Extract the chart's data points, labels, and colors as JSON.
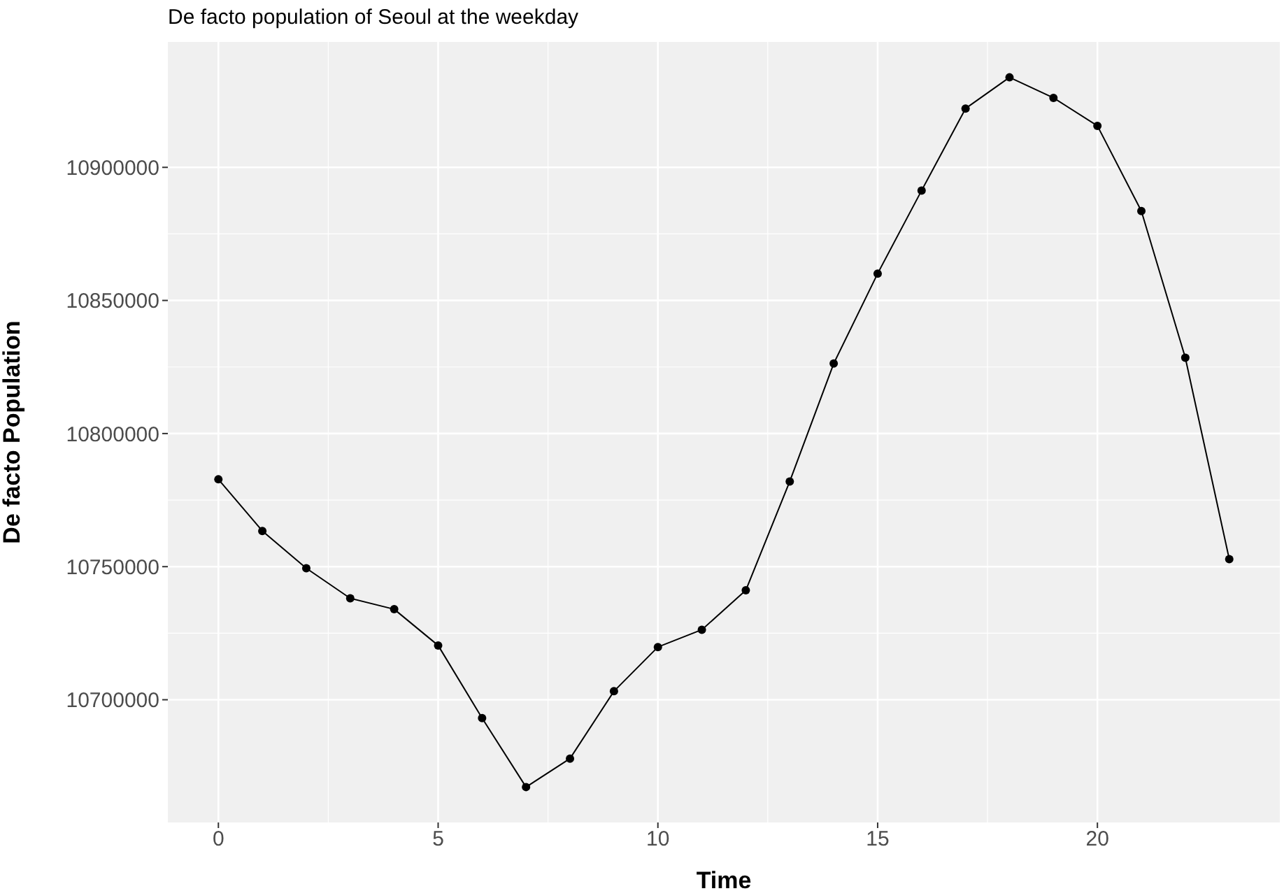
{
  "chart_data": {
    "type": "line",
    "title": "De facto population of Seoul at the weekday",
    "xlabel": "Time",
    "ylabel": "De facto Population",
    "x": [
      0,
      1,
      2,
      3,
      4,
      5,
      6,
      7,
      8,
      9,
      10,
      11,
      12,
      13,
      14,
      15,
      16,
      17,
      18,
      19,
      20,
      21,
      22,
      23
    ],
    "series": [
      {
        "color": "#000000",
        "values": [
          10782800,
          10763400,
          10749400,
          10738100,
          10734000,
          10720400,
          10693100,
          10667200,
          10677900,
          10703200,
          10719800,
          10726300,
          10741100,
          10782000,
          10826300,
          10860100,
          10891300,
          10922100,
          10933800,
          10926100,
          10915600,
          10883600,
          10828500,
          10752800
        ]
      }
    ],
    "xlim": [
      -1.15,
      24.15
    ],
    "xticks": [
      0,
      5,
      10,
      15,
      20
    ],
    "ylim": [
      10653900,
      10947100
    ],
    "yticks": [
      10700000,
      10750000,
      10800000,
      10850000,
      10900000
    ],
    "grid": true,
    "marker": "circle",
    "line_style": "solid",
    "legend": false
  }
}
